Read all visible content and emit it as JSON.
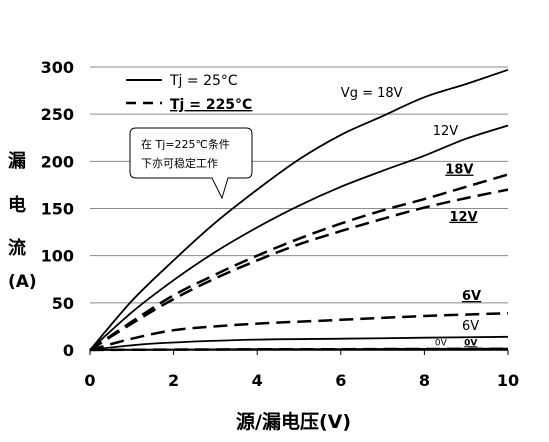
{
  "chart_data": {
    "type": "line",
    "title": "",
    "xlabel": "源/漏电压(V)",
    "ylabel_lines": [
      "漏",
      "电",
      "流",
      "(A)"
    ],
    "xlim": [
      0,
      10
    ],
    "ylim": [
      0,
      300
    ],
    "x_ticks": [
      0,
      2,
      4,
      6,
      8,
      10
    ],
    "y_ticks": [
      0,
      50,
      100,
      150,
      200,
      250,
      300
    ],
    "grid": "horizontal",
    "legend": {
      "placement": "top-left",
      "entries": [
        {
          "label": "Tj = 25°C",
          "style": "solid"
        },
        {
          "label": "Tj = 225°C",
          "style": "dashed"
        }
      ]
    },
    "callout": {
      "lines": [
        "在 Tj=225℃条件",
        "下亦可稳定工作"
      ]
    },
    "series": [
      {
        "name": "Vg = 18V",
        "style": "solid",
        "x": [
          0,
          1,
          2,
          3,
          4,
          5,
          6,
          7,
          8,
          9,
          10
        ],
        "y": [
          0,
          52,
          95,
          135,
          170,
          202,
          228,
          248,
          268,
          282,
          297
        ]
      },
      {
        "name": "12V",
        "style": "solid",
        "x": [
          0,
          1,
          2,
          3,
          4,
          5,
          6,
          7,
          8,
          9,
          10
        ],
        "y": [
          0,
          40,
          74,
          104,
          130,
          153,
          173,
          190,
          206,
          224,
          238
        ]
      },
      {
        "name": "6V",
        "style": "solid",
        "x": [
          0,
          1,
          2,
          4,
          6,
          8,
          10
        ],
        "y": [
          0,
          5,
          8,
          11,
          12,
          13,
          14
        ]
      },
      {
        "name": "0V",
        "style": "solid",
        "x": [
          0,
          2,
          4,
          6,
          8,
          10
        ],
        "y": [
          0,
          0.5,
          0.8,
          1,
          1.2,
          1.5
        ]
      },
      {
        "name": "18V",
        "style": "dashed",
        "x": [
          0,
          1,
          2,
          3,
          4,
          5,
          6,
          7,
          8,
          9,
          10
        ],
        "y": [
          0,
          30,
          58,
          80,
          100,
          118,
          134,
          148,
          160,
          173,
          186
        ]
      },
      {
        "name": "12V",
        "style": "dashed",
        "x": [
          0,
          1,
          2,
          3,
          4,
          5,
          6,
          7,
          8,
          9,
          10
        ],
        "y": [
          0,
          28,
          54,
          76,
          95,
          112,
          126,
          139,
          151,
          161,
          170
        ]
      },
      {
        "name": "6V",
        "style": "dashed",
        "x": [
          0,
          1,
          2,
          3,
          4,
          6,
          8,
          10
        ],
        "y": [
          0,
          12,
          21,
          25,
          28,
          32,
          36,
          39
        ]
      },
      {
        "name": "0V",
        "style": "dashed",
        "x": [
          0,
          2,
          4,
          6,
          8,
          10
        ],
        "y": [
          0,
          0.4,
          0.7,
          0.9,
          1.1,
          1.3
        ]
      }
    ],
    "curve_labels": [
      {
        "text": "Vg = 18V",
        "x": 6.0,
        "y": 268,
        "style": "plain"
      },
      {
        "text": "12V",
        "x": 8.2,
        "y": 228,
        "style": "plain"
      },
      {
        "text": "18V",
        "x": 8.5,
        "y": 187,
        "style": "bold-underline"
      },
      {
        "text": "12V",
        "x": 8.6,
        "y": 137,
        "style": "bold-underline"
      },
      {
        "text": "6V",
        "x": 8.9,
        "y": 53,
        "style": "bold-underline"
      },
      {
        "text": "6V",
        "x": 8.9,
        "y": 21,
        "style": "plain"
      },
      {
        "text": "0V",
        "x": 8.25,
        "y": 5,
        "style": "small"
      },
      {
        "text": "0V",
        "x": 8.95,
        "y": 5,
        "style": "small-bold-underline"
      }
    ]
  }
}
